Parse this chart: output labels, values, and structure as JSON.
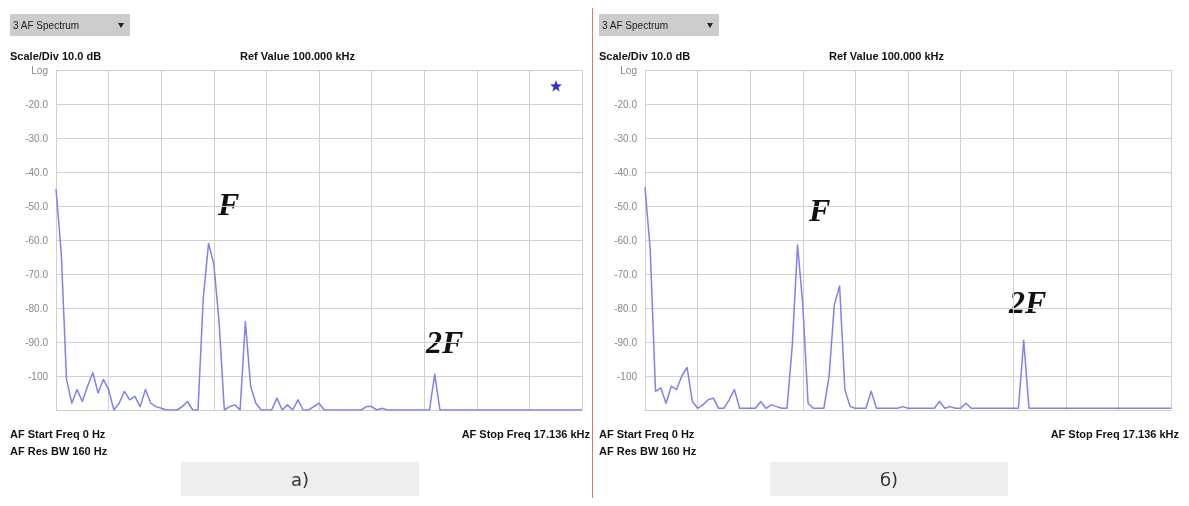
{
  "chart_data": [
    {
      "type": "line",
      "title": "а)",
      "ylim": [
        -110,
        -10
      ],
      "tick_labels": "y",
      "grid": true,
      "line_style": "solid",
      "categories": [
        null,
        null,
        null,
        null,
        null,
        null,
        null,
        null,
        null,
        null,
        null,
        null,
        null,
        null,
        null,
        null,
        null,
        null,
        null,
        null,
        null,
        null,
        null,
        null,
        null,
        null,
        null,
        null,
        null,
        null,
        null,
        null,
        null,
        null,
        null,
        null,
        null,
        null,
        null,
        null,
        null,
        null,
        null,
        null,
        null,
        null,
        null,
        null,
        null,
        null,
        null,
        null,
        null,
        null,
        null,
        null,
        null,
        null,
        null,
        null,
        null,
        null,
        null,
        null,
        null,
        null,
        null,
        null,
        null,
        null,
        null,
        null,
        null,
        null,
        null,
        null,
        null,
        null,
        null,
        null,
        null,
        null,
        null,
        null,
        null,
        null,
        null,
        null,
        null,
        null,
        null,
        null,
        null,
        null,
        null,
        null,
        null,
        null,
        null,
        null,
        null
      ],
      "yticks": [
        {
          "value": -110,
          "label": null
        },
        {
          "value": -100,
          "label": "-100"
        },
        {
          "value": -90,
          "label": "-90.0"
        },
        {
          "value": -80,
          "label": "-80.0"
        },
        {
          "value": -70,
          "label": "-70.0"
        },
        {
          "value": -60,
          "label": "-60.0"
        },
        {
          "value": -50,
          "label": "-50.0"
        },
        {
          "value": -40,
          "label": "-40.0"
        },
        {
          "value": -30,
          "label": "-30.0"
        },
        {
          "value": -20,
          "label": "-20.0"
        },
        {
          "value": -10,
          "label": "Log"
        }
      ],
      "annotations": [
        "3 AF Spectrum",
        "Scale/Div 10.0 dB",
        "Ref Value 100.000 kHz",
        "AF Start Freq 0 Hz",
        "AF Res BW 160 Hz",
        "AF Stop Freq 17.136 kHz",
        "F",
        "2F"
      ],
      "series": [
        {
          "color": "#8080ee",
          "values": [
            -45,
            -64,
            -101,
            -108,
            -104,
            -107.5,
            -103,
            -99,
            -105,
            -101,
            -104,
            -110,
            -108,
            -104.5,
            -107,
            -106,
            -109,
            -104,
            -108,
            -109,
            -109.5,
            -110,
            -110,
            -110,
            -109,
            -107.5,
            -110,
            -110,
            -77,
            -61,
            -67,
            -84,
            -110,
            -109,
            -108.5,
            -110,
            -84,
            -103,
            -108,
            -110,
            -110,
            -110,
            -106.5,
            -110,
            -108.5,
            -110,
            -107,
            -110,
            -110,
            -109,
            -108,
            -110,
            -110,
            -110,
            -110,
            -110,
            -110,
            -110,
            -110,
            -109,
            -109,
            -110,
            -109.5,
            -110,
            -110,
            -110,
            -110,
            -110,
            -110,
            -110,
            -110,
            -110,
            -99.5,
            -110,
            -110,
            -110,
            -110,
            -110,
            -110,
            -110,
            -110,
            -110,
            -110,
            -110,
            -110,
            -110,
            -110,
            -110,
            -110,
            -110,
            -110,
            -110,
            -110,
            -110,
            -110,
            -110,
            -110,
            -110,
            -110,
            -110,
            -110
          ]
        }
      ]
    },
    {
      "type": "line",
      "title": "б)",
      "ylim": [
        -110,
        -10
      ],
      "tick_labels": "y",
      "grid": true,
      "line_style": "solid",
      "categories": [
        null,
        null,
        null,
        null,
        null,
        null,
        null,
        null,
        null,
        null,
        null,
        null,
        null,
        null,
        null,
        null,
        null,
        null,
        null,
        null,
        null,
        null,
        null,
        null,
        null,
        null,
        null,
        null,
        null,
        null,
        null,
        null,
        null,
        null,
        null,
        null,
        null,
        null,
        null,
        null,
        null,
        null,
        null,
        null,
        null,
        null,
        null,
        null,
        null,
        null,
        null,
        null,
        null,
        null,
        null,
        null,
        null,
        null,
        null,
        null,
        null,
        null,
        null,
        null,
        null,
        null,
        null,
        null,
        null,
        null,
        null,
        null,
        null,
        null,
        null,
        null,
        null,
        null,
        null,
        null,
        null,
        null,
        null,
        null,
        null,
        null,
        null,
        null,
        null,
        null,
        null,
        null,
        null,
        null,
        null,
        null,
        null,
        null,
        null,
        null,
        null
      ],
      "yticks": [
        {
          "value": -110,
          "label": null
        },
        {
          "value": -100,
          "label": "-100"
        },
        {
          "value": -90,
          "label": "-90.0"
        },
        {
          "value": -80,
          "label": "-80.0"
        },
        {
          "value": -70,
          "label": "-70.0"
        },
        {
          "value": -60,
          "label": "-60.0"
        },
        {
          "value": -50,
          "label": "-50.0"
        },
        {
          "value": -40,
          "label": "-40.0"
        },
        {
          "value": -30,
          "label": "-30.0"
        },
        {
          "value": -20,
          "label": "-20.0"
        },
        {
          "value": -10,
          "label": "Log"
        }
      ],
      "annotations": [
        "3 AF Spectrum",
        "Scale/Div 10.0 dB",
        "Ref Value 100.000 kHz",
        "AF Start Freq 0 Hz",
        "AF Res BW 160 Hz",
        "AF Stop Freq 17.136 kHz",
        "F",
        "2F"
      ],
      "series": [
        {
          "color": "#8080ee",
          "values": [
            -44.5,
            -63,
            -104.5,
            -103.5,
            -108,
            -103,
            -104,
            -100,
            -97.5,
            -107.5,
            -109.5,
            -108.5,
            -107,
            -106.5,
            -109.5,
            -109.5,
            -107,
            -104,
            -109.5,
            -109.5,
            -109.5,
            -109.5,
            -107.5,
            -109.5,
            -108.5,
            -109,
            -109.5,
            -109.5,
            -91,
            -61.5,
            -79,
            -108,
            -109.5,
            -109.5,
            -109.5,
            -100,
            -79,
            -73.5,
            -104,
            -109,
            -109.5,
            -109.5,
            -109.5,
            -104.5,
            -109.5,
            -109.5,
            -109.5,
            -109.5,
            -109.5,
            -109,
            -109.5,
            -109.5,
            -109.5,
            -109.5,
            -109.5,
            -109.5,
            -107.5,
            -109.5,
            -109,
            -109.5,
            -109.5,
            -108,
            -109.5,
            -109.5,
            -109.5,
            -109.5,
            -109.5,
            -109.5,
            -109.5,
            -109.5,
            -109.5,
            -109.5,
            -89.5,
            -109.5,
            -109.5,
            -109.5,
            -109.5,
            -109.5,
            -109.5,
            -109.5,
            -109.5,
            -109.5,
            -109.5,
            -109.5,
            -109.5,
            -109.5,
            -109.5,
            -109.5,
            -109.5,
            -109.5,
            -109.5,
            -109.5,
            -109.5,
            -109.5,
            -109.5,
            -109.5,
            -109.5,
            -109.5,
            -109.5,
            -109.5,
            -109.5
          ]
        }
      ]
    }
  ]
}
